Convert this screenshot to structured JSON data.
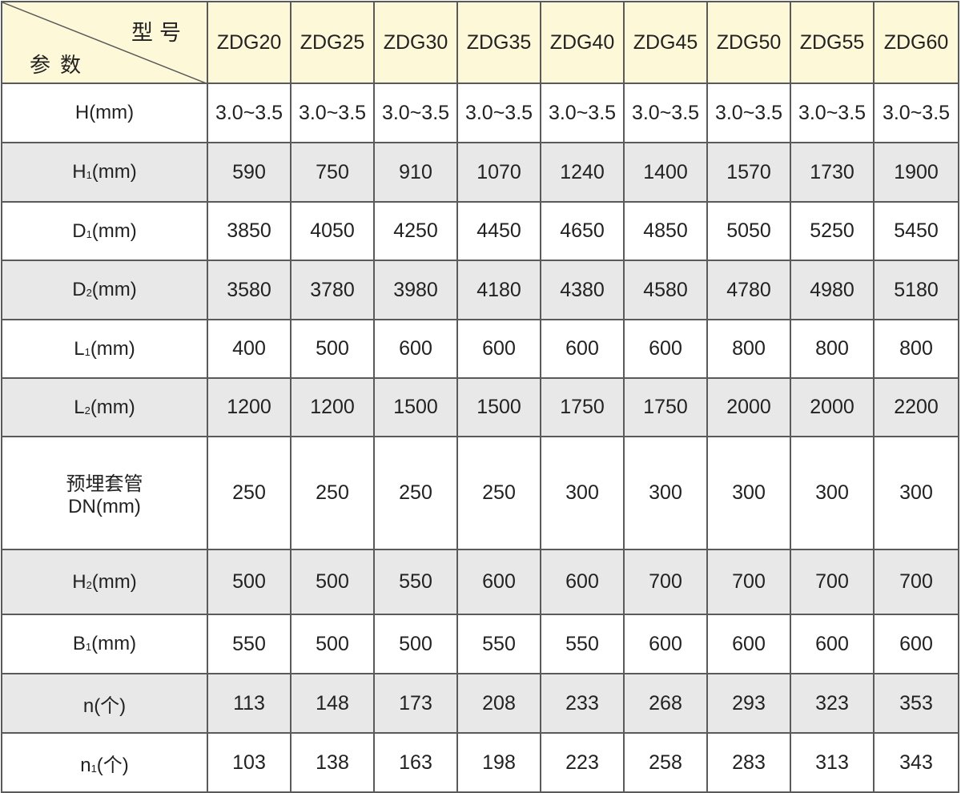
{
  "header": {
    "corner_top": "型号",
    "corner_bottom": "参数",
    "models": [
      "ZDG20",
      "ZDG25",
      "ZDG30",
      "ZDG35",
      "ZDG40",
      "ZDG45",
      "ZDG50",
      "ZDG55",
      "ZDG60"
    ]
  },
  "colors": {
    "header_bg": "#fdf8d8",
    "stripe_bg": "#e8e8e8",
    "grid": "#5a5a5a"
  },
  "rows": [
    {
      "label": "H",
      "sub": "",
      "unit": "(mm)",
      "values": [
        "3.0~3.5",
        "3.0~3.5",
        "3.0~3.5",
        "3.0~3.5",
        "3.0~3.5",
        "3.0~3.5",
        "3.0~3.5",
        "3.0~3.5",
        "3.0~3.5"
      ]
    },
    {
      "label": "H",
      "sub": "1",
      "unit": "(mm)",
      "values": [
        "590",
        "750",
        "910",
        "1070",
        "1240",
        "1400",
        "1570",
        "1730",
        "1900"
      ]
    },
    {
      "label": "D",
      "sub": "1",
      "unit": "(mm)",
      "values": [
        "3850",
        "4050",
        "4250",
        "4450",
        "4650",
        "4850",
        "5050",
        "5250",
        "5450"
      ]
    },
    {
      "label": "D",
      "sub": "2",
      "unit": "(mm)",
      "values": [
        "3580",
        "3780",
        "3980",
        "4180",
        "4380",
        "4580",
        "4780",
        "4980",
        "5180"
      ]
    },
    {
      "label": "L",
      "sub": "1",
      "unit": "(mm)",
      "values": [
        "400",
        "500",
        "600",
        "600",
        "600",
        "600",
        "800",
        "800",
        "800"
      ]
    },
    {
      "label": "L",
      "sub": "2",
      "unit": "(mm)",
      "values": [
        "1200",
        "1200",
        "1500",
        "1500",
        "1750",
        "1750",
        "2000",
        "2000",
        "2200"
      ]
    },
    {
      "label": "预埋套管",
      "sub": "",
      "unit": "DN(mm)",
      "values": [
        "250",
        "250",
        "250",
        "250",
        "300",
        "300",
        "300",
        "300",
        "300"
      ]
    },
    {
      "label": "H",
      "sub": "2",
      "unit": "(mm)",
      "values": [
        "500",
        "500",
        "550",
        "600",
        "600",
        "700",
        "700",
        "700",
        "700"
      ]
    },
    {
      "label": "B",
      "sub": "1",
      "unit": "(mm)",
      "values": [
        "550",
        "500",
        "500",
        "550",
        "550",
        "600",
        "600",
        "600",
        "600"
      ]
    },
    {
      "label": "n",
      "sub": "",
      "unit": "(个)",
      "values": [
        "113",
        "148",
        "173",
        "208",
        "233",
        "268",
        "293",
        "323",
        "353"
      ]
    },
    {
      "label": "n",
      "sub": "1",
      "unit": "(个)",
      "values": [
        "103",
        "138",
        "163",
        "198",
        "223",
        "258",
        "283",
        "313",
        "343"
      ]
    }
  ]
}
